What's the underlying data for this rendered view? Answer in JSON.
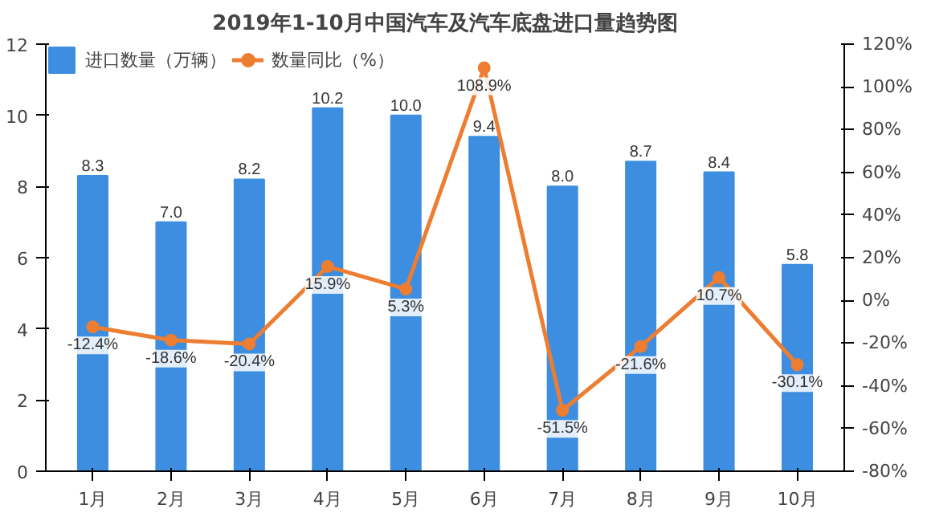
{
  "chart_data": {
    "type": "bar",
    "title": "2019年1-10月中国汽车及汽车底盘进口量趋势图",
    "categories": [
      "1月",
      "2月",
      "3月",
      "4月",
      "5月",
      "6月",
      "7月",
      "8月",
      "9月",
      "10月"
    ],
    "series": [
      {
        "name": "进口数量（万辆）",
        "color": "#3d8ee0",
        "values": [
          8.3,
          7.0,
          8.2,
          10.2,
          10.0,
          9.4,
          8.0,
          8.7,
          8.4,
          5.8
        ],
        "value_labels": [
          "8.3",
          "7.0",
          "8.2",
          "10.2",
          "10.0",
          "9.4",
          "8.0",
          "8.7",
          "8.4",
          "5.8"
        ]
      },
      {
        "name": "数量同比（%）",
        "type": "line",
        "axis": "y2",
        "color": "#ed7d31",
        "marker": "circle",
        "values": [
          -12.4,
          -18.6,
          -20.4,
          15.9,
          5.3,
          108.9,
          -51.5,
          -21.6,
          10.7,
          -30.1
        ],
        "value_labels": [
          "-12.4%",
          "-18.6%",
          "-20.4%",
          "15.9%",
          "5.3%",
          "108.9%",
          "-51.5%",
          "-21.6%",
          "10.7%",
          "-30.1%"
        ]
      }
    ],
    "ylim": [
      0,
      12
    ],
    "yticks": [
      0,
      2,
      4,
      6,
      8,
      10,
      12
    ],
    "y2lim": [
      -80,
      120
    ],
    "y2ticks": [
      {
        "value": -80,
        "label": "-80%"
      },
      {
        "value": -60,
        "label": "-60%"
      },
      {
        "value": -40,
        "label": "-40%"
      },
      {
        "value": -20,
        "label": "-20%"
      },
      {
        "value": 0,
        "label": "0%"
      },
      {
        "value": 20,
        "label": "20%"
      },
      {
        "value": 40,
        "label": "40%"
      },
      {
        "value": 60,
        "label": "60%"
      },
      {
        "value": 80,
        "label": "80%"
      },
      {
        "value": 100,
        "label": "100%"
      },
      {
        "value": 120,
        "label": "120%"
      }
    ],
    "grid": false,
    "legend": "top",
    "line_style": "solid"
  }
}
